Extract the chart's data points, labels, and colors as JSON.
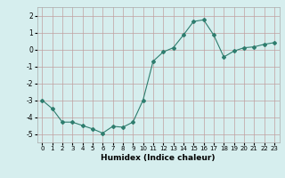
{
  "x": [
    0,
    1,
    2,
    3,
    4,
    5,
    6,
    7,
    8,
    9,
    10,
    11,
    12,
    13,
    14,
    15,
    16,
    17,
    18,
    19,
    20,
    21,
    22,
    23
  ],
  "y": [
    -3.0,
    -3.5,
    -4.3,
    -4.3,
    -4.5,
    -4.7,
    -4.95,
    -4.55,
    -4.6,
    -4.3,
    -3.0,
    -0.7,
    -0.15,
    0.1,
    0.85,
    1.65,
    1.75,
    0.85,
    -0.45,
    -0.1,
    0.1,
    0.15,
    0.3,
    0.4
  ],
  "xlabel": "Humidex (Indice chaleur)",
  "xlim": [
    -0.5,
    23.5
  ],
  "ylim": [
    -5.5,
    2.5
  ],
  "yticks": [
    -5,
    -4,
    -3,
    -2,
    -1,
    0,
    1,
    2
  ],
  "xticks": [
    0,
    1,
    2,
    3,
    4,
    5,
    6,
    7,
    8,
    9,
    10,
    11,
    12,
    13,
    14,
    15,
    16,
    17,
    18,
    19,
    20,
    21,
    22,
    23
  ],
  "line_color": "#2e7d6e",
  "marker_color": "#2e7d6e",
  "bg_color": "#d6eeee",
  "grid_color": "#c0a0a0",
  "axes_bg": "#d6eeee"
}
